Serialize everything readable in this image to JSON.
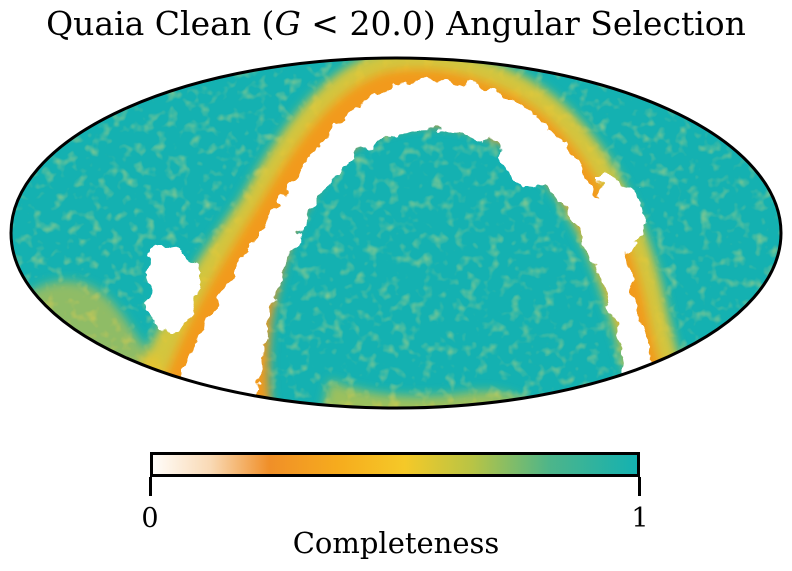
{
  "title": {
    "prefix": "Quaia Clean (",
    "variable": "G",
    "suffix": " < 20.0) Angular Selection"
  },
  "map": {
    "projection": "mollweide",
    "description_palette": {
      "empty": "#ffffff",
      "low": "#f6a01e",
      "mid": "#f4c52a",
      "high": "#14b1b1"
    }
  },
  "colorbar": {
    "label": "Completeness",
    "min_label": "0",
    "max_label": "1",
    "range": [
      0,
      1
    ],
    "stops": [
      {
        "value": 0.0,
        "color": "#fffdfa"
      },
      {
        "value": 0.12,
        "color": "#f9d9b4"
      },
      {
        "value": 0.24,
        "color": "#f08f28"
      },
      {
        "value": 0.38,
        "color": "#f6ab1d"
      },
      {
        "value": 0.52,
        "color": "#f5c928"
      },
      {
        "value": 0.66,
        "color": "#b8c445"
      },
      {
        "value": 0.82,
        "color": "#4db58a"
      },
      {
        "value": 1.0,
        "color": "#14b1b1"
      }
    ]
  }
}
